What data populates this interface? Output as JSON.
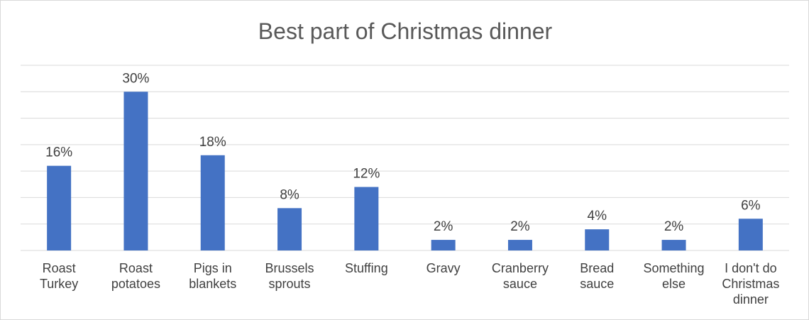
{
  "chart_data": {
    "type": "bar",
    "title": "Best part of Christmas dinner",
    "categories": [
      [
        "Roast",
        "Turkey"
      ],
      [
        "Roast",
        "potatoes"
      ],
      [
        "Pigs in",
        "blankets"
      ],
      [
        "Brussels",
        "sprouts"
      ],
      [
        "Stuffing"
      ],
      [
        "Gravy"
      ],
      [
        "Cranberry",
        "sauce"
      ],
      [
        "Bread",
        "sauce"
      ],
      [
        "Something",
        "else"
      ],
      [
        "I don't do",
        "Christmas",
        "dinner"
      ]
    ],
    "values": [
      16,
      30,
      18,
      8,
      12,
      2,
      2,
      4,
      2,
      6
    ],
    "data_labels": [
      "16%",
      "30%",
      "18%",
      "8%",
      "12%",
      "2%",
      "2%",
      "4%",
      "2%",
      "6%"
    ],
    "ylim": [
      0,
      35
    ],
    "gridlines": true,
    "legend": false,
    "colors": {
      "bar": "#4472c4",
      "grid": "#d9d9d9",
      "text": "#404040",
      "title": "#595959"
    }
  }
}
